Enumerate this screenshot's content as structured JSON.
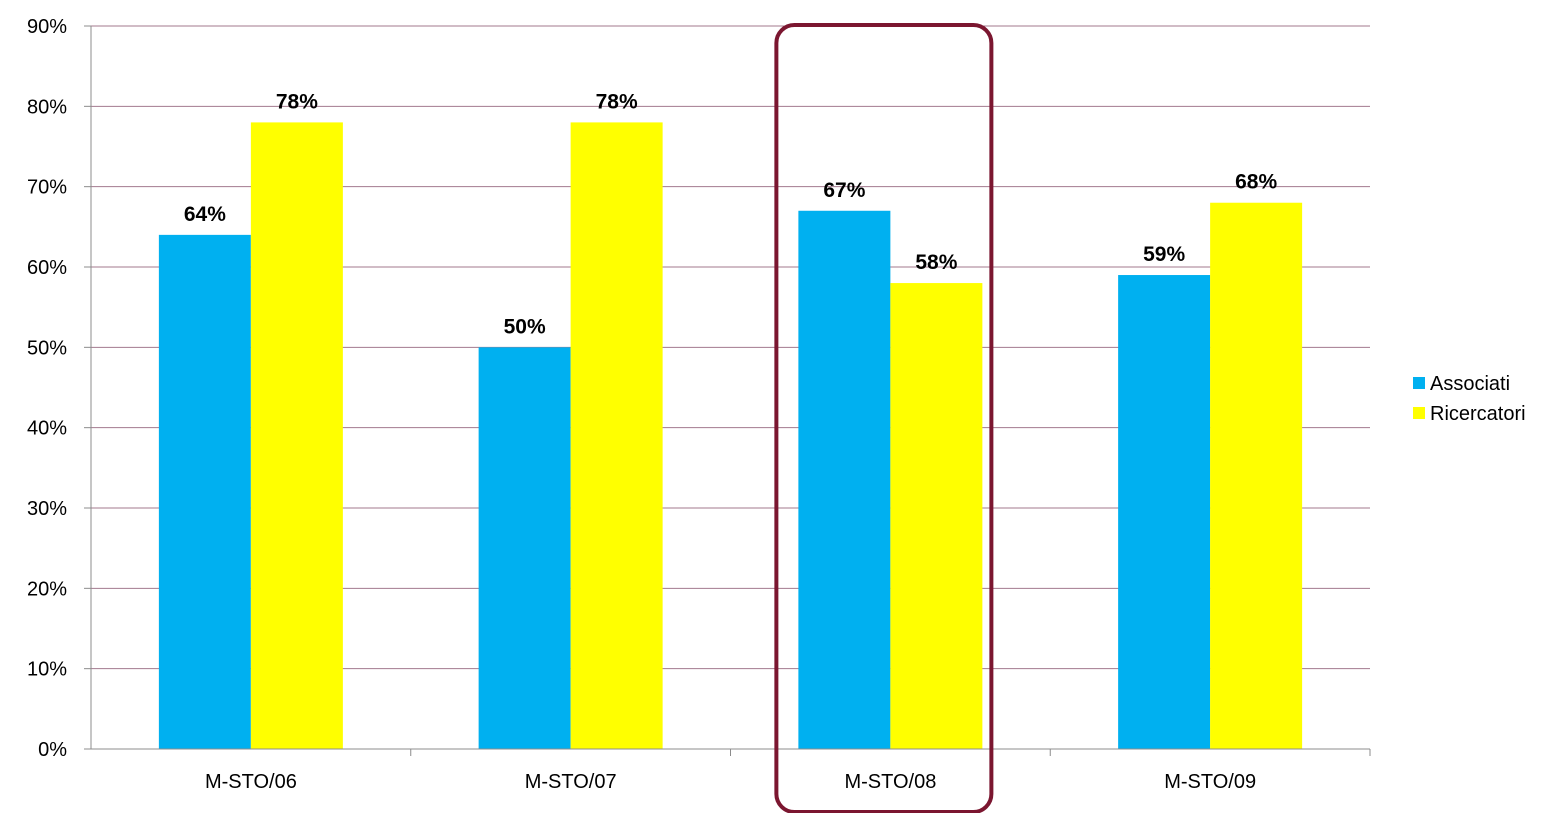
{
  "chart_data": {
    "type": "bar",
    "categories": [
      "M-STO/06",
      "M-STO/07",
      "M-STO/08",
      "M-STO/09"
    ],
    "series": [
      {
        "name": "Associati",
        "values": [
          64,
          50,
          67,
          59
        ],
        "labels": [
          "64%",
          "50%",
          "67%",
          "59%"
        ],
        "color": "#00B0F0"
      },
      {
        "name": "Ricercatori",
        "values": [
          78,
          78,
          58,
          68
        ],
        "labels": [
          "78%",
          "78%",
          "58%",
          "68%"
        ],
        "color": "#FFFF00"
      }
    ],
    "yticks": [
      "0%",
      "10%",
      "20%",
      "30%",
      "40%",
      "50%",
      "60%",
      "70%",
      "80%",
      "90%"
    ],
    "ylim": [
      0,
      90
    ],
    "grid": true,
    "grid_color": "#A37A8E",
    "legend_position": "right",
    "highlighted_category": "M-STO/08",
    "highlight_color": "#7B1630"
  }
}
